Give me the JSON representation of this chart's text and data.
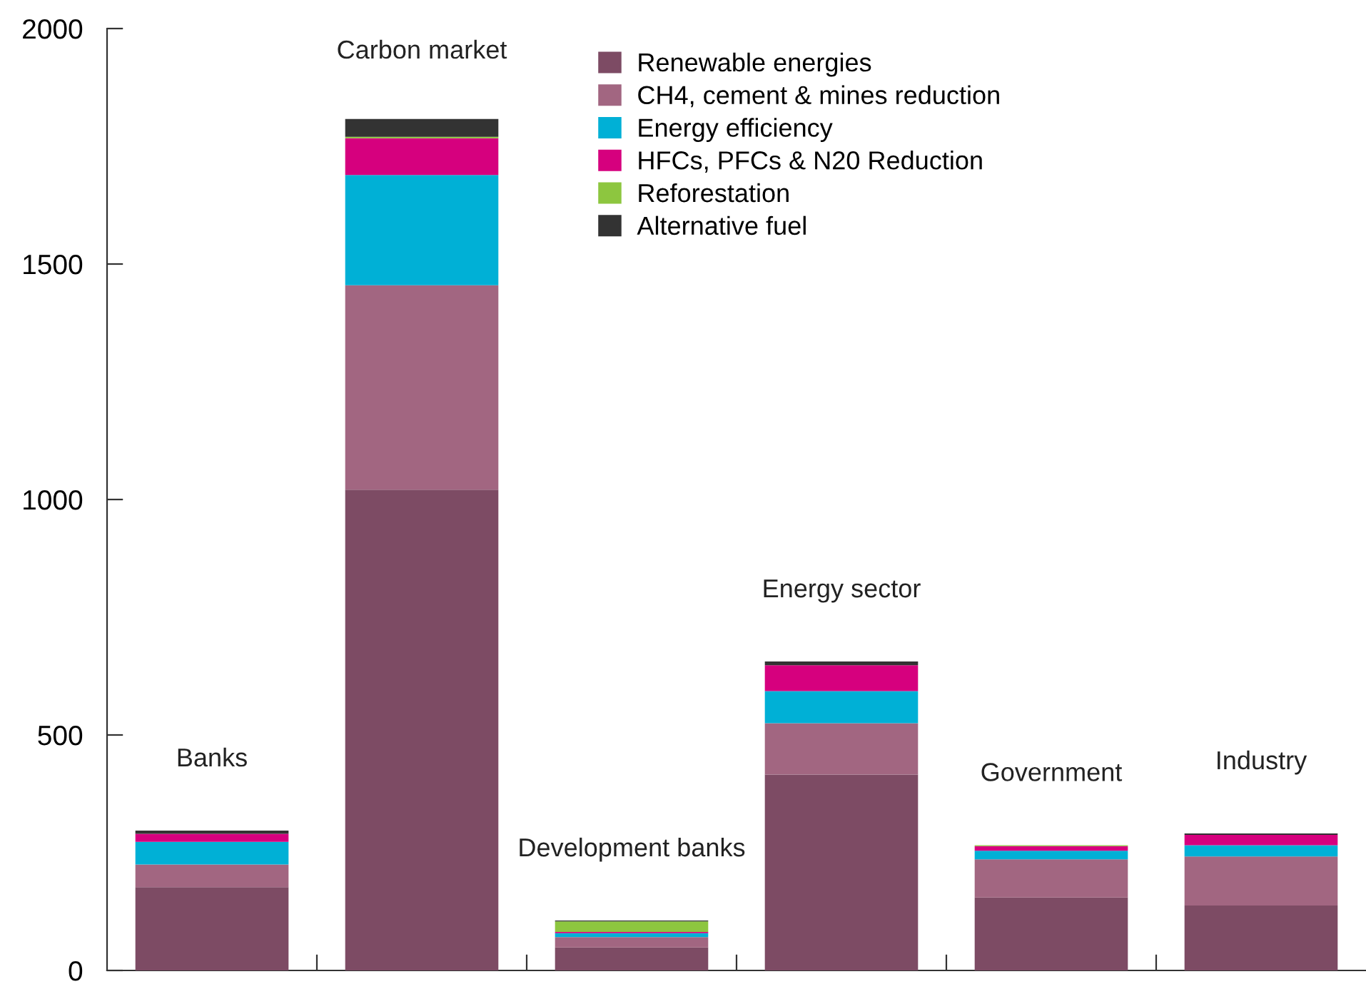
{
  "chart_data": {
    "type": "bar",
    "stacked": true,
    "categories": [
      "Banks",
      "Carbon market",
      "Development banks",
      "Energy sector",
      "Government",
      "Industry"
    ],
    "series": [
      {
        "name": "Renewable energies",
        "color": "#7d4b64",
        "values": [
          177,
          1021,
          49,
          416,
          155,
          138
        ]
      },
      {
        "name": "CH4, cement & mines reduction",
        "color": "#a26681",
        "values": [
          48,
          434,
          22,
          109,
          81,
          104
        ]
      },
      {
        "name": "Energy efficiency",
        "color": "#00b0d6",
        "values": [
          48,
          234,
          8,
          68,
          18,
          24
        ]
      },
      {
        "name": "HFCs, PFCs & N20 Reduction",
        "color": "#d6007e",
        "values": [
          17,
          78,
          3,
          55,
          10,
          22
        ]
      },
      {
        "name": "Reforestation",
        "color": "#8dc63f",
        "values": [
          0,
          3,
          22,
          0,
          2,
          0
        ]
      },
      {
        "name": "Alternative fuel",
        "color": "#333333",
        "values": [
          7,
          38,
          2,
          8,
          0,
          3
        ]
      }
    ],
    "ylim": [
      0,
      2000
    ],
    "yticks": [
      0,
      500,
      1000,
      1500,
      2000
    ],
    "grid": false,
    "legend": "top"
  }
}
